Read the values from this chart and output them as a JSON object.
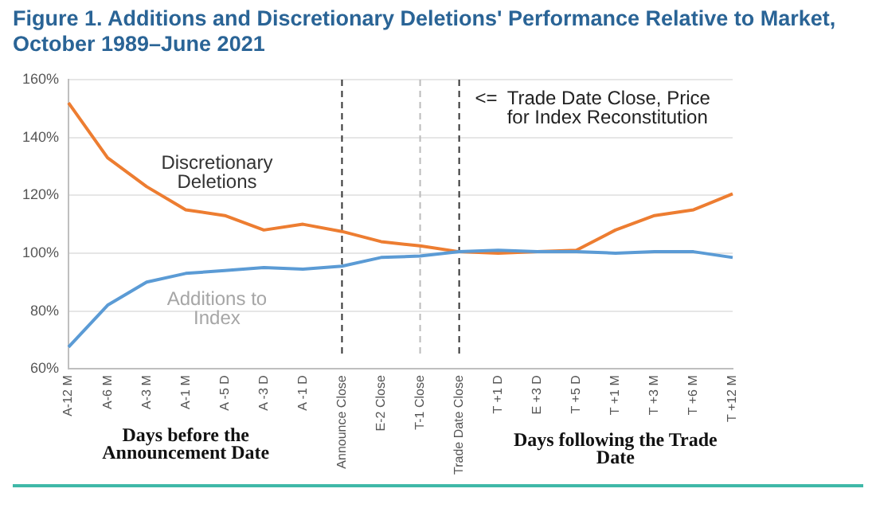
{
  "chart_data": {
    "type": "line",
    "title": "Figure 1. Additions and Discretionary Deletions' Performance Relative to Market, October 1989–June 2021",
    "categories": [
      "A-12 M",
      "A-6 M",
      "A-3 M",
      "A-1 M",
      "A -5 D",
      "A -3 D",
      "A -1 D",
      "Announce Close",
      "E-2 Close",
      "T-1 Close",
      "Trade Date Close",
      "T +1 D",
      "E +3 D",
      "T +5 D",
      "T +1 M",
      "T +3 M",
      "T +6 M",
      "T +12 M"
    ],
    "series": [
      {
        "name": "Discretionary Deletions",
        "color": "#ed7d31",
        "values": [
          152,
          133,
          123,
          115,
          113,
          108,
          110,
          107.5,
          104,
          102.5,
          100.5,
          100,
          100.5,
          101,
          108,
          113,
          115,
          120.5
        ]
      },
      {
        "name": "Additions to Index",
        "color": "#5b9bd5",
        "values": [
          67.5,
          82,
          90,
          93,
          94,
          95,
          94.5,
          95.5,
          98.5,
          99,
          100.5,
          101,
          100.5,
          100.5,
          100,
          100.5,
          100.5,
          98.5
        ]
      }
    ],
    "ylim": [
      60,
      160
    ],
    "yticks": [
      {
        "value": 60,
        "label": "60%"
      },
      {
        "value": 80,
        "label": "80%"
      },
      {
        "value": 100,
        "label": "100%"
      },
      {
        "value": 120,
        "label": "120%"
      },
      {
        "value": 140,
        "label": "140%"
      },
      {
        "value": 160,
        "label": "160%"
      }
    ],
    "grid": "y",
    "legend": false,
    "marker": "none",
    "line_style": "solid",
    "ref_lines": [
      {
        "axis": "x",
        "value": "Announce Close",
        "color": "#333333",
        "line_style": "dashed"
      },
      {
        "axis": "x",
        "value": "T-1 Close",
        "color": "#bbbbbb",
        "line_style": "dashed"
      },
      {
        "axis": "x",
        "value": "Trade Date Close",
        "color": "#333333",
        "line_style": "dashed"
      }
    ],
    "annotations": [
      "Days before the Announcement Date",
      "Days following the Trade Date",
      {
        "text": "<=  Trade Date Close, Price for Index Reconstitution",
        "x": "Trade Date Close"
      }
    ]
  }
}
